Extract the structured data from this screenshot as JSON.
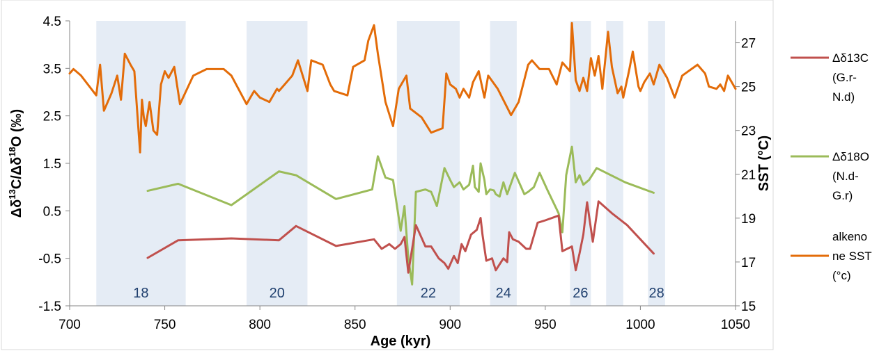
{
  "chart_data": {
    "type": "line",
    "xlabel": "Age (kyr)",
    "ylabel": "Δδ13C/Δδ18O (‰)",
    "ylabel2": "SST (°C)",
    "xlim": [
      700,
      1050
    ],
    "ylim": [
      -1.5,
      4.5
    ],
    "ylim2": [
      15,
      28
    ],
    "x_ticks": [
      "700",
      "750",
      "800",
      "850",
      "900",
      "950",
      "1000",
      "1050"
    ],
    "y_ticks": [
      "-1.5",
      "-0.5",
      "0.5",
      "1.5",
      "2.5",
      "3.5",
      "4.5"
    ],
    "y2_ticks": [
      "15",
      "17",
      "19",
      "21",
      "23",
      "25",
      "27"
    ],
    "bands": [
      {
        "label": "18",
        "start": 714,
        "end": 761
      },
      {
        "label": "20",
        "start": 793,
        "end": 825
      },
      {
        "label": "22",
        "start": 872,
        "end": 905
      },
      {
        "label": "24",
        "start": 921,
        "end": 935
      },
      {
        "label": "26",
        "start": 963,
        "end": 974
      },
      {
        "label": "",
        "start": 982,
        "end": 991
      },
      {
        "label": "28",
        "start": 1004,
        "end": 1013
      }
    ],
    "series": [
      {
        "name": "Δδ13C (G.r-N.d)",
        "color": "#c0504d",
        "axis": "left",
        "x": [
          741,
          757,
          785,
          810,
          819,
          840,
          860,
          864,
          868,
          871,
          874,
          876,
          878,
          880,
          882,
          887,
          890,
          894,
          897,
          899,
          902,
          904,
          906,
          908,
          911,
          914,
          916,
          917,
          919,
          922,
          924,
          928,
          930,
          931,
          933,
          936,
          940,
          942,
          946,
          950,
          957,
          959,
          964,
          966,
          968,
          970,
          972,
          975,
          978,
          985,
          993,
          1007
        ],
        "y": [
          -0.49,
          -0.12,
          -0.08,
          -0.12,
          0.18,
          -0.24,
          -0.1,
          -0.3,
          -0.2,
          -0.3,
          -0.2,
          -0.05,
          -0.8,
          -0.3,
          0.2,
          -0.25,
          -0.25,
          -0.5,
          -0.6,
          -0.72,
          -0.45,
          -0.6,
          -0.2,
          -0.35,
          0.0,
          0.1,
          0.35,
          0.0,
          -0.55,
          -0.5,
          -0.75,
          -0.5,
          -0.58,
          0.05,
          -0.1,
          -0.15,
          -0.3,
          -0.3,
          0.25,
          0.3,
          0.4,
          -0.35,
          -0.25,
          -0.75,
          -0.4,
          0.0,
          0.68,
          -0.15,
          0.7,
          0.45,
          0.2,
          -0.4
        ]
      },
      {
        "name": "Δδ18O (N.d-G.r)",
        "color": "#9bbb59",
        "axis": "left",
        "x": [
          741,
          757,
          785,
          810,
          819,
          840,
          859,
          862,
          866,
          870,
          874,
          876,
          878,
          880,
          882,
          887,
          890,
          893,
          897,
          900,
          902,
          905,
          907,
          910,
          912,
          913,
          915,
          916,
          918,
          919,
          921,
          923,
          924,
          926,
          928,
          930,
          934,
          939,
          941,
          944,
          947,
          951,
          957,
          959,
          961,
          964,
          966,
          968,
          970,
          973,
          977,
          992,
          1007
        ],
        "y": [
          0.92,
          1.07,
          0.62,
          1.33,
          1.25,
          0.75,
          0.95,
          1.65,
          1.2,
          1.15,
          0.08,
          0.6,
          -0.5,
          -1.05,
          0.9,
          0.95,
          0.9,
          0.6,
          1.4,
          1.15,
          1.0,
          1.1,
          0.95,
          1.05,
          1.45,
          1.0,
          0.9,
          1.5,
          1.15,
          0.85,
          0.95,
          0.93,
          0.85,
          0.8,
          1.1,
          0.85,
          1.3,
          0.85,
          0.9,
          1.0,
          1.3,
          0.95,
          0.45,
          0.05,
          1.25,
          1.85,
          1.1,
          1.25,
          1.05,
          1.15,
          1.4,
          1.1,
          0.88
        ]
      },
      {
        "name": "alkenone SST (°c)",
        "color": "#e36c09",
        "axis": "right",
        "x": [
          700,
          702,
          706,
          714,
          716,
          718,
          722,
          725,
          727,
          729,
          732,
          734,
          737,
          738,
          739,
          740,
          742,
          744,
          746,
          748,
          750,
          752,
          755,
          758,
          765,
          772,
          781,
          785,
          793,
          797,
          800,
          805,
          809,
          810,
          813,
          817,
          820,
          825,
          827,
          833,
          837,
          839,
          846,
          849,
          855,
          857,
          860,
          862,
          866,
          870,
          873,
          877,
          879,
          885,
          890,
          896,
          898,
          900,
          903,
          905,
          907,
          910,
          912,
          915,
          918,
          920,
          925,
          932,
          936,
          941,
          943,
          947,
          952,
          956,
          959,
          963,
          964,
          966,
          968,
          970,
          972,
          974,
          976,
          978,
          980,
          983,
          985,
          988,
          990,
          991,
          994,
          996,
          999,
          1000,
          1002,
          1005,
          1007,
          1010,
          1014,
          1018,
          1022,
          1030,
          1034,
          1036,
          1040,
          1042,
          1044,
          1046,
          1050
        ],
        "y": [
          25.6,
          25.8,
          25.5,
          24.6,
          26.0,
          23.9,
          24.7,
          25.5,
          24.4,
          26.5,
          26.0,
          25.7,
          22.0,
          24.4,
          23.6,
          23.2,
          24.3,
          23.0,
          22.8,
          25.1,
          25.7,
          25.4,
          25.9,
          24.2,
          25.5,
          25.8,
          25.8,
          25.5,
          24.2,
          24.8,
          24.5,
          24.3,
          24.9,
          24.8,
          25.1,
          25.5,
          26.2,
          24.8,
          26.2,
          26.0,
          25.1,
          24.8,
          24.6,
          25.9,
          26.2,
          27.1,
          27.8,
          26.5,
          24.3,
          23.2,
          24.9,
          25.5,
          24.0,
          23.6,
          22.9,
          23.1,
          25.6,
          25.1,
          24.9,
          24.5,
          24.9,
          24.5,
          25.2,
          25.7,
          24.5,
          25.5,
          24.9,
          23.7,
          24.3,
          26.0,
          26.2,
          25.8,
          25.8,
          25.1,
          26.1,
          25.7,
          27.9,
          25.3,
          24.8,
          25.4,
          24.8,
          26.3,
          25.5,
          26.4,
          24.9,
          27.5,
          25.9,
          24.7,
          25.0,
          24.5,
          25.7,
          26.6,
          25.0,
          24.8,
          25.2,
          25.6,
          25.1,
          26.0,
          25.4,
          24.5,
          25.5,
          26.0,
          25.6,
          25.0,
          24.9,
          25.1,
          24.8,
          25.5,
          24.9
        ]
      }
    ],
    "legend_position": "right"
  },
  "legend": {
    "s1": [
      "Δδ13C",
      "(G.r-",
      "N.d)"
    ],
    "s2": [
      "Δδ18O",
      "(N.d-",
      "G.r)"
    ],
    "s3": [
      "alkeno",
      "ne SST",
      "(°c)"
    ]
  }
}
